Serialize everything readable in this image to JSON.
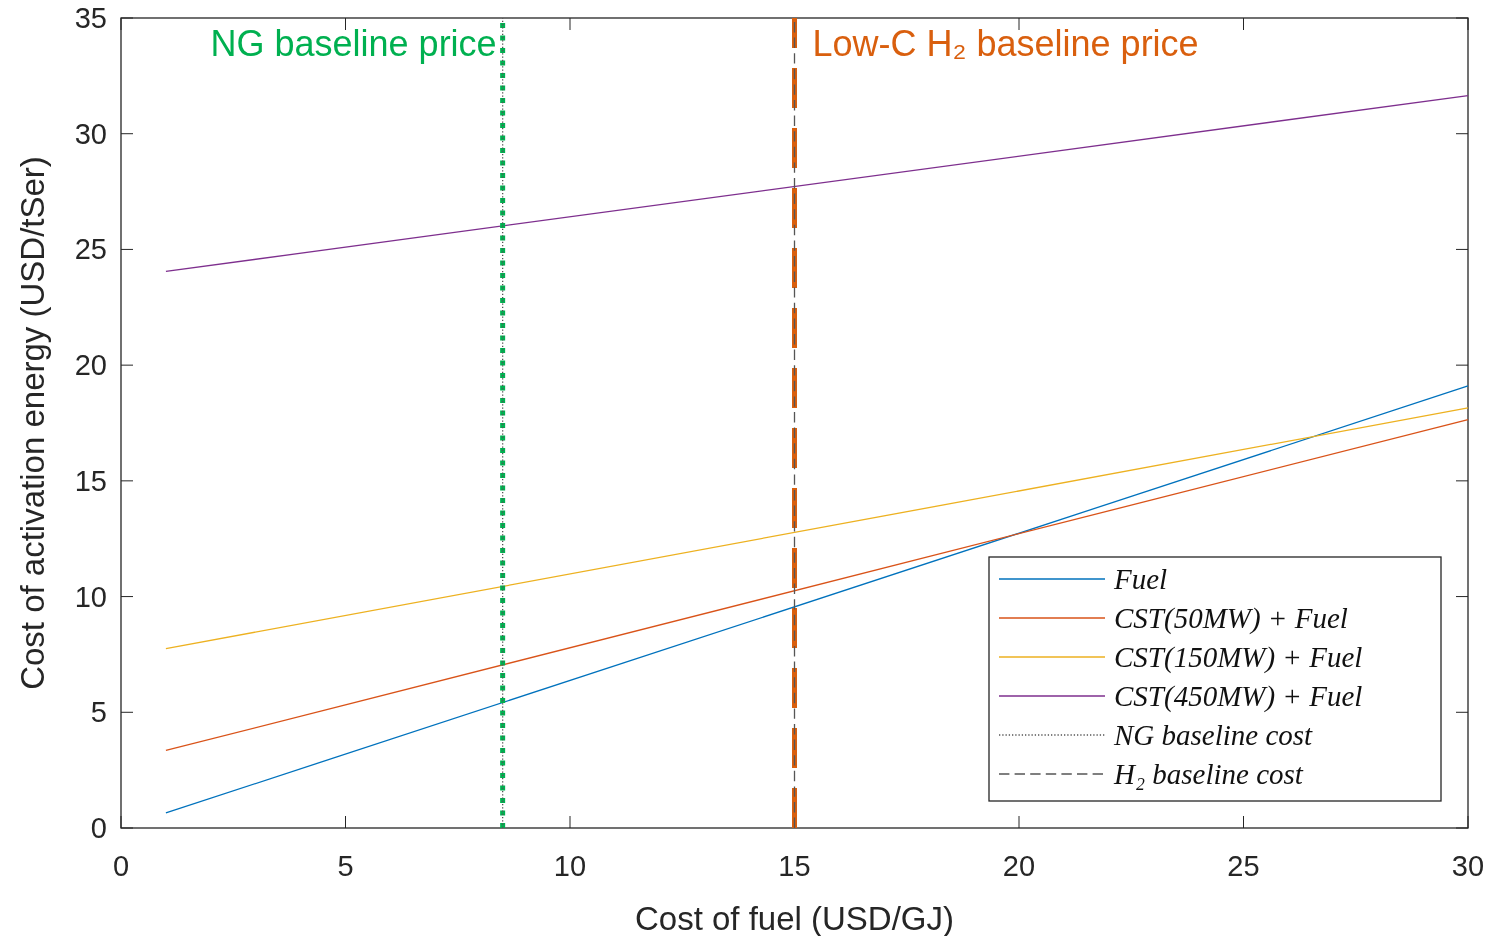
{
  "chart_data": {
    "type": "line",
    "xlabel": "Cost of fuel (USD/GJ)",
    "ylabel": "Cost of activation energy (USD/tSer)",
    "xlim": [
      0,
      30
    ],
    "ylim": [
      0,
      35
    ],
    "xticks": [
      0,
      5,
      10,
      15,
      20,
      25,
      30
    ],
    "yticks": [
      0,
      5,
      10,
      15,
      20,
      25,
      30,
      35
    ],
    "grid": false,
    "legend": "bottom right",
    "marker": "none",
    "series": [
      {
        "name": "Fuel",
        "color": "#0072bd",
        "x": [
          1,
          30
        ],
        "values": [
          0.65,
          19.1
        ],
        "line_style": "solid"
      },
      {
        "name": "CST(50MW) + Fuel",
        "color": "#d95319",
        "x": [
          1,
          30
        ],
        "values": [
          3.35,
          17.65
        ],
        "line_style": "solid"
      },
      {
        "name": "CST(150MW) + Fuel",
        "color": "#edb120",
        "x": [
          1,
          30
        ],
        "values": [
          7.75,
          18.15
        ],
        "line_style": "solid"
      },
      {
        "name": "CST(450MW) + Fuel",
        "color": "#7e2f8e",
        "x": [
          1,
          30
        ],
        "values": [
          24.05,
          31.65
        ],
        "line_style": "solid"
      },
      {
        "color": "#00b050",
        "x": [
          8.5,
          8.5
        ],
        "values": [
          0,
          35
        ],
        "line_style": "dotted"
      },
      {
        "color": "#d95f0e",
        "x": [
          15,
          15
        ],
        "values": [
          0,
          35
        ],
        "line_style": "dashed"
      },
      {
        "name": "NG baseline cost",
        "color": "#555555",
        "x": [
          8.5,
          8.5
        ],
        "values": [
          0,
          35
        ],
        "line_style": "dotted"
      },
      {
        "name": "H₂ baseline cost",
        "color": "#555555",
        "x": [
          15,
          15
        ],
        "values": [
          0,
          35
        ],
        "line_style": "dashed"
      }
    ],
    "annotations": [
      {
        "text": "NG baseline price",
        "x": 8.5,
        "y": 35
      },
      {
        "text": "Low-C H₂ baseline price",
        "x": 15,
        "y": 35
      }
    ]
  }
}
